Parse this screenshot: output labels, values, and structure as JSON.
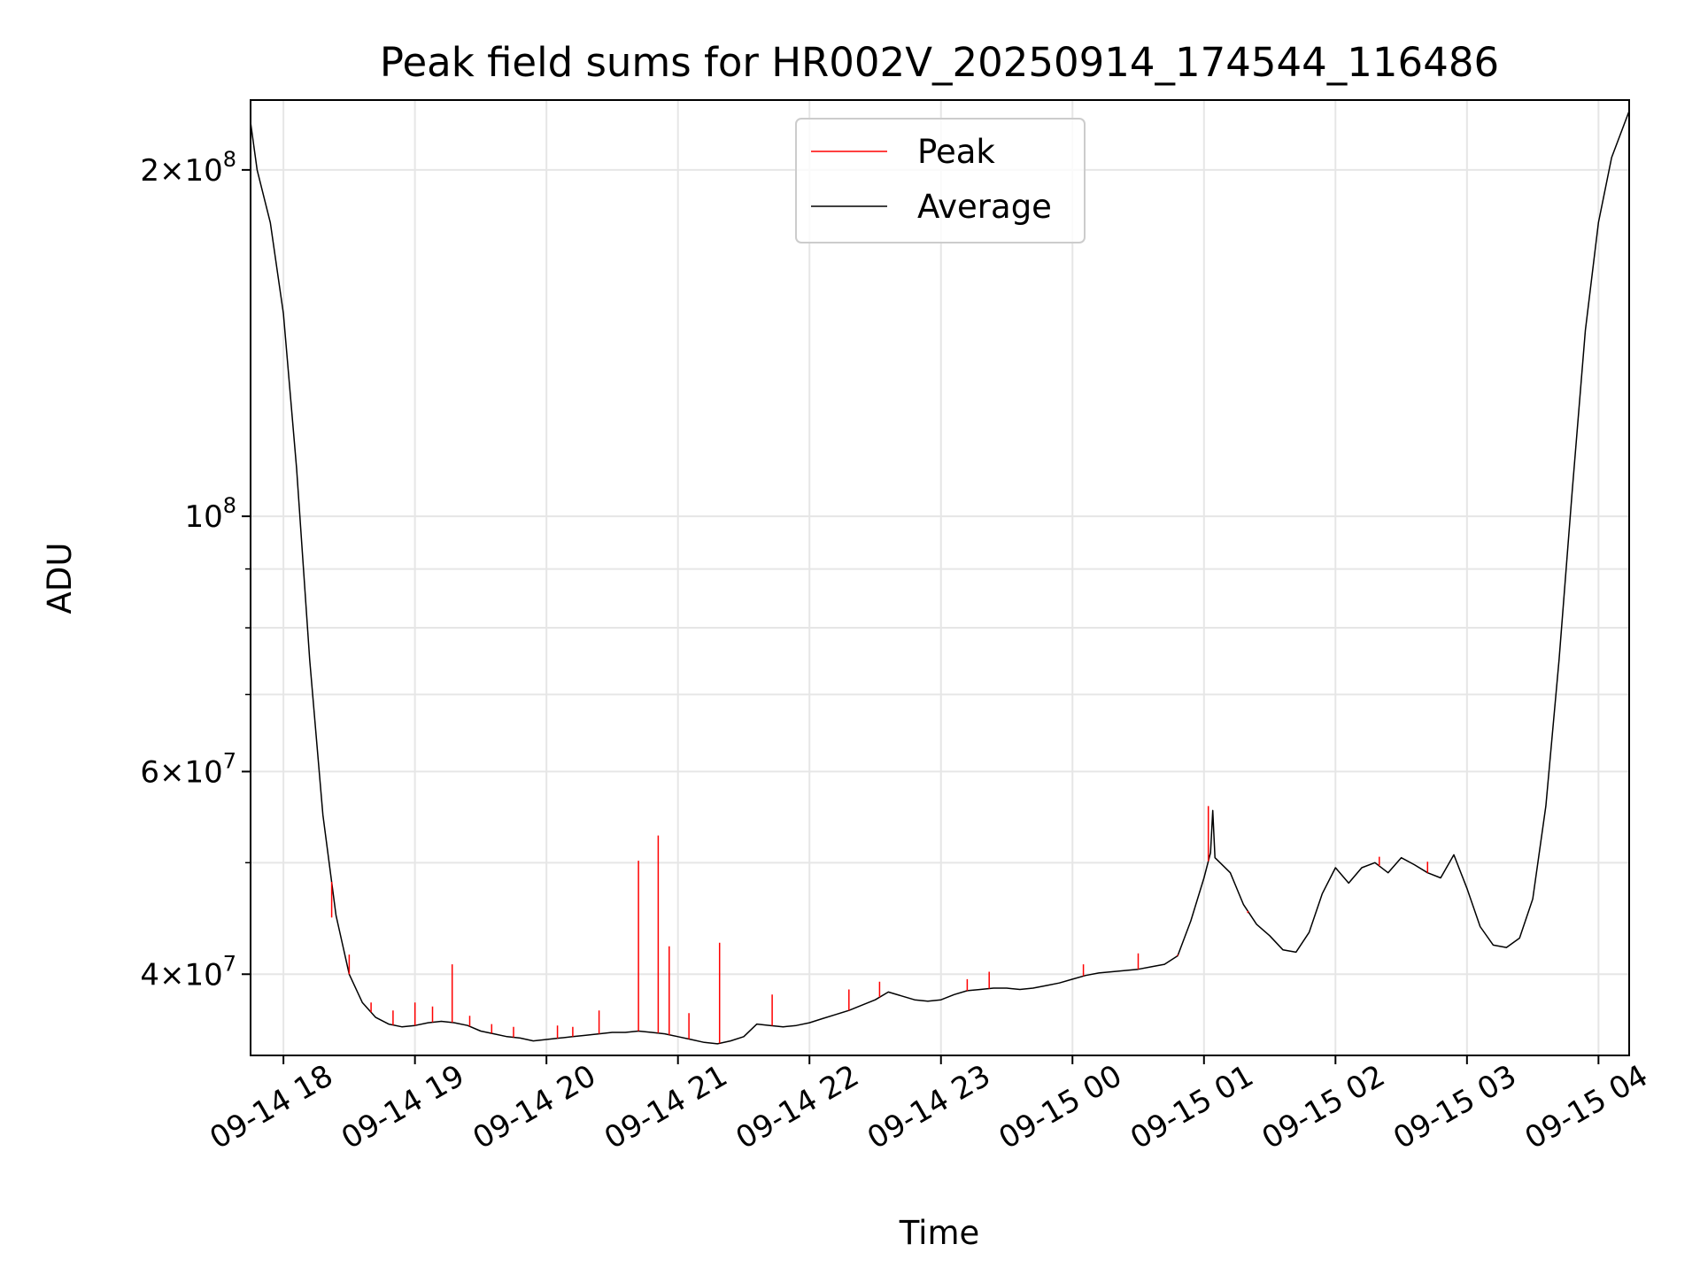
{
  "chart_data": {
    "type": "line",
    "title": "Peak field sums for HR002V_20250914_174544_116486",
    "xlabel": "Time",
    "ylabel": "ADU",
    "y_scale": "log",
    "ylim": [
      34000000,
      230000000
    ],
    "xlim": [
      "2025-09-14 17:45",
      "2025-09-15 04:14"
    ],
    "grid": true,
    "legend": {
      "position": "top-center",
      "entries": [
        "Peak",
        "Average"
      ]
    },
    "x_ticks": [
      {
        "t": "2025-09-14 18:00",
        "label": "09-14 18"
      },
      {
        "t": "2025-09-14 19:00",
        "label": "09-14 19"
      },
      {
        "t": "2025-09-14 20:00",
        "label": "09-14 20"
      },
      {
        "t": "2025-09-14 21:00",
        "label": "09-14 21"
      },
      {
        "t": "2025-09-14 22:00",
        "label": "09-14 22"
      },
      {
        "t": "2025-09-14 23:00",
        "label": "09-14 23"
      },
      {
        "t": "2025-09-15 00:00",
        "label": "09-15 00"
      },
      {
        "t": "2025-09-15 01:00",
        "label": "09-15 01"
      },
      {
        "t": "2025-09-15 02:00",
        "label": "09-15 02"
      },
      {
        "t": "2025-09-15 03:00",
        "label": "09-15 03"
      },
      {
        "t": "2025-09-15 04:00",
        "label": "09-15 04"
      }
    ],
    "y_ticks_major": [
      {
        "v": 40000000,
        "mant": "4",
        "exp": "7"
      },
      {
        "v": 60000000,
        "mant": "6",
        "exp": "7"
      },
      {
        "v": 100000000,
        "mant": "",
        "exp": "8"
      },
      {
        "v": 200000000,
        "mant": "2",
        "exp": "8"
      }
    ],
    "y_ticks_minor": [
      50000000,
      70000000,
      80000000,
      90000000
    ],
    "colors": {
      "Peak": "#ff0000",
      "Average": "#000000"
    },
    "series": [
      {
        "name": "Average",
        "points": [
          [
            "2025-09-14 17:45",
            220000000
          ],
          [
            "2025-09-14 17:48",
            200000000
          ],
          [
            "2025-09-14 17:54",
            180000000
          ],
          [
            "2025-09-14 18:00",
            150000000
          ],
          [
            "2025-09-14 18:06",
            110000000
          ],
          [
            "2025-09-14 18:12",
            75000000
          ],
          [
            "2025-09-14 18:18",
            55000000
          ],
          [
            "2025-09-14 18:24",
            45000000
          ],
          [
            "2025-09-14 18:30",
            40000000
          ],
          [
            "2025-09-14 18:36",
            37800000
          ],
          [
            "2025-09-14 18:42",
            36700000
          ],
          [
            "2025-09-14 18:48",
            36200000
          ],
          [
            "2025-09-14 18:54",
            36000000
          ],
          [
            "2025-09-14 19:00",
            36100000
          ],
          [
            "2025-09-14 19:06",
            36300000
          ],
          [
            "2025-09-14 19:12",
            36400000
          ],
          [
            "2025-09-14 19:18",
            36300000
          ],
          [
            "2025-09-14 19:24",
            36100000
          ],
          [
            "2025-09-14 19:30",
            35700000
          ],
          [
            "2025-09-14 19:36",
            35500000
          ],
          [
            "2025-09-14 19:42",
            35300000
          ],
          [
            "2025-09-14 19:48",
            35200000
          ],
          [
            "2025-09-14 19:54",
            35000000
          ],
          [
            "2025-09-14 20:00",
            35100000
          ],
          [
            "2025-09-14 20:06",
            35200000
          ],
          [
            "2025-09-14 20:12",
            35300000
          ],
          [
            "2025-09-14 20:18",
            35400000
          ],
          [
            "2025-09-14 20:24",
            35500000
          ],
          [
            "2025-09-14 20:30",
            35600000
          ],
          [
            "2025-09-14 20:36",
            35600000
          ],
          [
            "2025-09-14 20:42",
            35700000
          ],
          [
            "2025-09-14 20:48",
            35600000
          ],
          [
            "2025-09-14 20:54",
            35500000
          ],
          [
            "2025-09-14 21:00",
            35300000
          ],
          [
            "2025-09-14 21:06",
            35100000
          ],
          [
            "2025-09-14 21:12",
            34900000
          ],
          [
            "2025-09-14 21:18",
            34800000
          ],
          [
            "2025-09-14 21:24",
            35000000
          ],
          [
            "2025-09-14 21:30",
            35300000
          ],
          [
            "2025-09-14 21:36",
            36200000
          ],
          [
            "2025-09-14 21:42",
            36100000
          ],
          [
            "2025-09-14 21:48",
            36000000
          ],
          [
            "2025-09-14 21:54",
            36100000
          ],
          [
            "2025-09-14 22:00",
            36300000
          ],
          [
            "2025-09-14 22:06",
            36600000
          ],
          [
            "2025-09-14 22:12",
            36900000
          ],
          [
            "2025-09-14 22:18",
            37200000
          ],
          [
            "2025-09-14 22:24",
            37600000
          ],
          [
            "2025-09-14 22:30",
            38000000
          ],
          [
            "2025-09-14 22:36",
            38600000
          ],
          [
            "2025-09-14 22:42",
            38300000
          ],
          [
            "2025-09-14 22:48",
            38000000
          ],
          [
            "2025-09-14 22:54",
            37900000
          ],
          [
            "2025-09-14 23:00",
            38000000
          ],
          [
            "2025-09-14 23:06",
            38400000
          ],
          [
            "2025-09-14 23:12",
            38700000
          ],
          [
            "2025-09-14 23:18",
            38800000
          ],
          [
            "2025-09-14 23:24",
            38900000
          ],
          [
            "2025-09-14 23:30",
            38900000
          ],
          [
            "2025-09-14 23:36",
            38800000
          ],
          [
            "2025-09-14 23:42",
            38900000
          ],
          [
            "2025-09-14 23:48",
            39100000
          ],
          [
            "2025-09-14 23:54",
            39300000
          ],
          [
            "2025-09-15 00:00",
            39600000
          ],
          [
            "2025-09-15 00:06",
            39900000
          ],
          [
            "2025-09-15 00:12",
            40100000
          ],
          [
            "2025-09-15 00:18",
            40200000
          ],
          [
            "2025-09-15 00:24",
            40300000
          ],
          [
            "2025-09-15 00:30",
            40400000
          ],
          [
            "2025-09-15 00:36",
            40600000
          ],
          [
            "2025-09-15 00:42",
            40800000
          ],
          [
            "2025-09-15 00:48",
            41500000
          ],
          [
            "2025-09-15 00:54",
            44500000
          ],
          [
            "2025-09-15 01:00",
            48500000
          ],
          [
            "2025-09-15 01:03",
            51000000
          ],
          [
            "2025-09-15 01:04",
            55500000
          ],
          [
            "2025-09-15 01:05",
            50500000
          ],
          [
            "2025-09-15 01:12",
            49000000
          ],
          [
            "2025-09-15 01:18",
            46000000
          ],
          [
            "2025-09-15 01:24",
            44200000
          ],
          [
            "2025-09-15 01:30",
            43200000
          ],
          [
            "2025-09-15 01:36",
            42000000
          ],
          [
            "2025-09-15 01:42",
            41800000
          ],
          [
            "2025-09-15 01:48",
            43500000
          ],
          [
            "2025-09-15 01:54",
            47000000
          ],
          [
            "2025-09-15 02:00",
            49500000
          ],
          [
            "2025-09-15 02:06",
            48000000
          ],
          [
            "2025-09-15 02:12",
            49500000
          ],
          [
            "2025-09-15 02:18",
            50000000
          ],
          [
            "2025-09-15 02:24",
            49000000
          ],
          [
            "2025-09-15 02:30",
            50500000
          ],
          [
            "2025-09-15 02:36",
            49800000
          ],
          [
            "2025-09-15 02:42",
            49000000
          ],
          [
            "2025-09-15 02:48",
            48500000
          ],
          [
            "2025-09-15 02:54",
            50800000
          ],
          [
            "2025-09-15 03:00",
            47500000
          ],
          [
            "2025-09-15 03:06",
            44000000
          ],
          [
            "2025-09-15 03:12",
            42400000
          ],
          [
            "2025-09-15 03:18",
            42200000
          ],
          [
            "2025-09-15 03:24",
            43000000
          ],
          [
            "2025-09-15 03:30",
            46500000
          ],
          [
            "2025-09-15 03:36",
            56000000
          ],
          [
            "2025-09-15 03:42",
            75000000
          ],
          [
            "2025-09-15 03:48",
            105000000
          ],
          [
            "2025-09-15 03:54",
            145000000
          ],
          [
            "2025-09-15 04:00",
            180000000
          ],
          [
            "2025-09-15 04:06",
            205000000
          ],
          [
            "2025-09-15 04:14",
            225000000
          ]
        ]
      },
      {
        "name": "Peak",
        "points": [
          [
            "2025-09-14 18:22",
            44800000
          ],
          [
            "2025-09-14 18:30",
            41600000
          ],
          [
            "2025-09-14 18:40",
            37800000
          ],
          [
            "2025-09-14 18:50",
            37200000
          ],
          [
            "2025-09-14 19:00",
            37800000
          ],
          [
            "2025-09-14 19:08",
            37500000
          ],
          [
            "2025-09-14 19:17",
            40800000
          ],
          [
            "2025-09-14 19:25",
            36800000
          ],
          [
            "2025-09-14 19:35",
            36200000
          ],
          [
            "2025-09-14 19:45",
            36000000
          ],
          [
            "2025-09-14 20:05",
            36100000
          ],
          [
            "2025-09-14 20:12",
            36000000
          ],
          [
            "2025-09-14 20:24",
            37200000
          ],
          [
            "2025-09-14 20:42",
            50200000
          ],
          [
            "2025-09-14 20:51",
            52800000
          ],
          [
            "2025-09-14 20:56",
            42300000
          ],
          [
            "2025-09-14 21:05",
            37000000
          ],
          [
            "2025-09-14 21:19",
            42600000
          ],
          [
            "2025-09-14 21:43",
            38400000
          ],
          [
            "2025-09-14 22:18",
            38800000
          ],
          [
            "2025-09-14 22:32",
            39400000
          ],
          [
            "2025-09-14 23:12",
            39600000
          ],
          [
            "2025-09-14 23:22",
            40200000
          ],
          [
            "2025-09-15 00:05",
            40800000
          ],
          [
            "2025-09-15 00:30",
            41700000
          ],
          [
            "2025-09-15 00:48",
            41600000
          ],
          [
            "2025-09-15 01:02",
            56000000
          ],
          [
            "2025-09-15 01:20",
            45200000
          ],
          [
            "2025-09-15 02:20",
            50600000
          ],
          [
            "2025-09-15 02:42",
            50100000
          ]
        ]
      }
    ]
  }
}
